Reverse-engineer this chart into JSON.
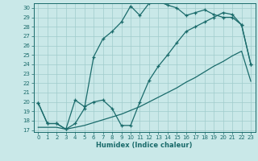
{
  "xlabel": "Humidex (Indice chaleur)",
  "ylabel": "",
  "xlim": [
    -0.5,
    23.5
  ],
  "ylim": [
    16.8,
    30.5
  ],
  "xticks": [
    0,
    1,
    2,
    3,
    4,
    5,
    6,
    7,
    8,
    9,
    10,
    11,
    12,
    13,
    14,
    15,
    16,
    17,
    18,
    19,
    20,
    21,
    22,
    23
  ],
  "yticks": [
    17,
    18,
    19,
    20,
    21,
    22,
    23,
    24,
    25,
    26,
    27,
    28,
    29,
    30
  ],
  "bg_color": "#c9e8e8",
  "line_color": "#1a6b6b",
  "grid_color": "#a0cccc",
  "line1_x": [
    0,
    1,
    2,
    3,
    4,
    5,
    6,
    7,
    8,
    9,
    10,
    11,
    12,
    13,
    14,
    15,
    16,
    17,
    18,
    19,
    20,
    21,
    22,
    23
  ],
  "line1_y": [
    19.9,
    17.7,
    17.7,
    17.1,
    17.7,
    19.3,
    24.8,
    26.7,
    27.5,
    28.5,
    30.2,
    29.2,
    30.5,
    30.7,
    30.3,
    30.0,
    29.2,
    29.5,
    29.8,
    29.3,
    29.0,
    29.0,
    28.2,
    24.0
  ],
  "line2_x": [
    0,
    1,
    2,
    3,
    4,
    5,
    6,
    7,
    8,
    9,
    10,
    11,
    12,
    13,
    14,
    15,
    16,
    17,
    18,
    19,
    20,
    21,
    22,
    23
  ],
  "line2_y": [
    19.9,
    17.7,
    17.7,
    17.1,
    20.2,
    19.5,
    20.0,
    20.2,
    19.3,
    17.5,
    17.5,
    20.0,
    22.3,
    23.8,
    25.0,
    26.3,
    27.5,
    28.0,
    28.5,
    29.0,
    29.5,
    29.3,
    28.2,
    24.0
  ],
  "line3_x": [
    0,
    1,
    2,
    3,
    4,
    5,
    6,
    7,
    8,
    9,
    10,
    11,
    12,
    13,
    14,
    15,
    16,
    17,
    18,
    19,
    20,
    21,
    22,
    23
  ],
  "line3_y": [
    17.3,
    17.3,
    17.3,
    17.1,
    17.3,
    17.5,
    17.8,
    18.1,
    18.4,
    18.7,
    19.1,
    19.5,
    20.0,
    20.5,
    21.0,
    21.5,
    22.1,
    22.6,
    23.2,
    23.8,
    24.3,
    24.9,
    25.4,
    22.2
  ]
}
